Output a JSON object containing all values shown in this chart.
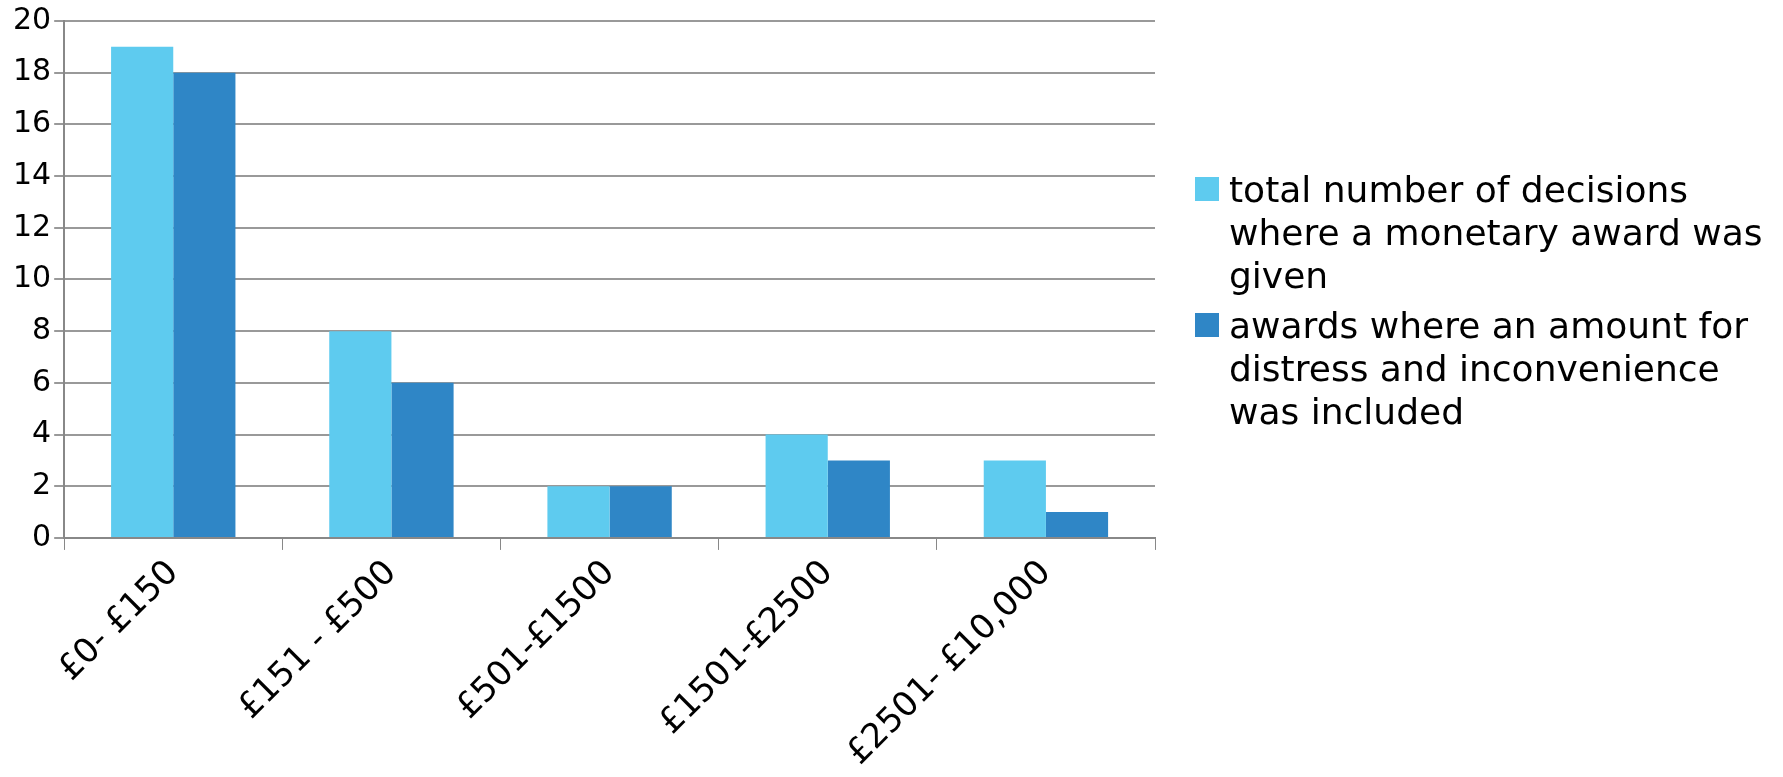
{
  "chart_data": {
    "type": "bar",
    "categories": [
      "£0- £150",
      "£151 - £500",
      "£501-£1500",
      "£1501-£2500",
      "£2501- £10,000"
    ],
    "series": [
      {
        "name": "total number of decisions where a monetary award  was given",
        "color": "#5ecbef",
        "values": [
          19,
          8,
          2,
          4,
          3
        ]
      },
      {
        "name": "awards where an amount for distress and inconvenience was included",
        "color": "#2f86c6",
        "values": [
          18,
          6,
          2,
          3,
          1
        ]
      }
    ],
    "ylim": [
      0,
      20
    ],
    "yticks": [
      0,
      2,
      4,
      6,
      8,
      10,
      12,
      14,
      16,
      18,
      20
    ],
    "grid": "y",
    "legend": "right"
  }
}
